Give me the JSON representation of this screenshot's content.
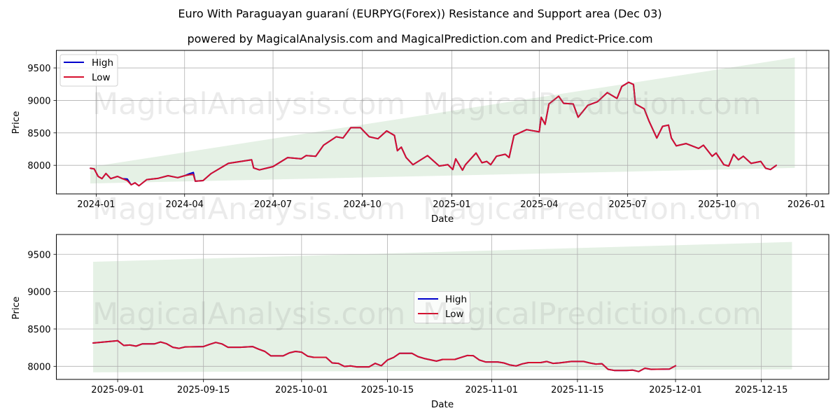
{
  "title": "Euro With Paraguayan guaraní (EURPYG(Forex)) Resistance and Support area (Dec 03)",
  "subtitle": "powered by MagicalAnalysis.com and MagicalPrediction.com and Predict-Price.com",
  "watermarks": [
    "MagicalAnalysis.com",
    "MagicalPrediction.com"
  ],
  "colors": {
    "high": "#0000cc",
    "low": "#d6102e",
    "band": "#e5f1e5",
    "grid": "#b0b0b0"
  },
  "chart_data": [
    {
      "type": "line",
      "title": "",
      "xlabel": "Date",
      "ylabel": "Price",
      "xlim": [
        "2023-11-21",
        "2026-01-24"
      ],
      "ylim": [
        7560,
        9770
      ],
      "grid": true,
      "legend_position": "upper left",
      "xticks": [
        "2024-01",
        "2024-04",
        "2024-07",
        "2024-10",
        "2025-01",
        "2025-04",
        "2025-07",
        "2025-10",
        "2026-01"
      ],
      "yticks": [
        8000,
        8500,
        9000,
        9500
      ],
      "band": {
        "x": [
          "2023-12-26",
          "2025-12-20"
        ],
        "upper": [
          7975,
          9660
        ],
        "lower": [
          7720,
          7960
        ]
      },
      "x": [
        "2023-12-26",
        "2023-12-30",
        "2024-01-03",
        "2024-01-07",
        "2024-01-11",
        "2024-01-16",
        "2024-01-23",
        "2024-01-28",
        "2024-02-02",
        "2024-02-06",
        "2024-02-10",
        "2024-02-14",
        "2024-02-22",
        "2024-03-05",
        "2024-03-15",
        "2024-03-25",
        "2024-04-01",
        "2024-04-06",
        "2024-04-10",
        "2024-04-12",
        "2024-04-20",
        "2024-04-28",
        "2024-05-16",
        "2024-06-09",
        "2024-06-11",
        "2024-06-17",
        "2024-07-01",
        "2024-07-16",
        "2024-07-30",
        "2024-08-04",
        "2024-08-14",
        "2024-08-22",
        "2024-09-04",
        "2024-09-11",
        "2024-09-19",
        "2024-09-29",
        "2024-10-08",
        "2024-10-17",
        "2024-10-26",
        "2024-11-03",
        "2024-11-06",
        "2024-11-10",
        "2024-11-15",
        "2024-11-22",
        "2024-12-07",
        "2024-12-19",
        "2024-12-28",
        "2025-01-02",
        "2025-01-05",
        "2025-01-12",
        "2025-01-15",
        "2025-01-26",
        "2025-02-01",
        "2025-02-06",
        "2025-02-10",
        "2025-02-16",
        "2025-02-25",
        "2025-03-01",
        "2025-03-06",
        "2025-03-19",
        "2025-04-01",
        "2025-04-03",
        "2025-04-07",
        "2025-04-11",
        "2025-04-21",
        "2025-04-26",
        "2025-05-06",
        "2025-05-11",
        "2025-05-21",
        "2025-05-31",
        "2025-06-10",
        "2025-06-20",
        "2025-06-25",
        "2025-07-02",
        "2025-07-07",
        "2025-07-09",
        "2025-07-18",
        "2025-07-23",
        "2025-07-31",
        "2025-08-06",
        "2025-08-12",
        "2025-08-15",
        "2025-08-20",
        "2025-08-30",
        "2025-09-12",
        "2025-09-17",
        "2025-09-26",
        "2025-09-30",
        "2025-10-08",
        "2025-10-13",
        "2025-10-18",
        "2025-10-23",
        "2025-10-28",
        "2025-11-05",
        "2025-11-15",
        "2025-11-20",
        "2025-11-25",
        "2025-12-01"
      ],
      "series": [
        {
          "name": "High",
          "color": "#0000cc",
          "values": [
            7955,
            7945,
            7830,
            7795,
            7875,
            7795,
            7830,
            7795,
            7790,
            7700,
            7730,
            7685,
            7780,
            7800,
            7840,
            7810,
            7840,
            7870,
            7890,
            7755,
            7765,
            7870,
            8030,
            8085,
            7960,
            7930,
            7980,
            8120,
            8100,
            8150,
            8140,
            8310,
            8440,
            8420,
            8580,
            8580,
            8440,
            8410,
            8530,
            8460,
            8225,
            8280,
            8120,
            8010,
            8150,
            7990,
            8010,
            7935,
            8100,
            7925,
            8010,
            8190,
            8040,
            8060,
            8010,
            8140,
            8170,
            8120,
            8460,
            8550,
            8515,
            8740,
            8630,
            8945,
            9065,
            8955,
            8945,
            8740,
            8925,
            8980,
            9120,
            9030,
            9215,
            9280,
            9245,
            8945,
            8870,
            8680,
            8420,
            8600,
            8620,
            8420,
            8300,
            8335,
            8260,
            8310,
            8140,
            8190,
            8010,
            7990,
            8170,
            8085,
            8140,
            8030,
            8060,
            7955,
            7935,
            8000
          ]
        },
        {
          "name": "Low",
          "color": "#d6102e",
          "values": [
            7955,
            7945,
            7830,
            7795,
            7875,
            7795,
            7830,
            7795,
            7765,
            7700,
            7730,
            7685,
            7780,
            7800,
            7840,
            7810,
            7840,
            7855,
            7860,
            7755,
            7765,
            7870,
            8030,
            8085,
            7960,
            7930,
            7980,
            8120,
            8100,
            8150,
            8140,
            8310,
            8440,
            8420,
            8580,
            8580,
            8440,
            8410,
            8530,
            8460,
            8225,
            8280,
            8120,
            8010,
            8150,
            7990,
            8010,
            7935,
            8100,
            7925,
            8010,
            8190,
            8040,
            8060,
            8010,
            8140,
            8170,
            8120,
            8460,
            8550,
            8515,
            8740,
            8630,
            8945,
            9065,
            8955,
            8945,
            8740,
            8925,
            8980,
            9120,
            9030,
            9215,
            9280,
            9245,
            8945,
            8870,
            8680,
            8420,
            8600,
            8620,
            8420,
            8300,
            8335,
            8260,
            8310,
            8140,
            8190,
            8010,
            7990,
            8170,
            8085,
            8140,
            8030,
            8060,
            7955,
            7935,
            8000
          ]
        }
      ]
    },
    {
      "type": "line",
      "title": "",
      "xlabel": "Date",
      "ylabel": "Price",
      "xlim": [
        "2025-08-22",
        "2025-12-26"
      ],
      "ylim": [
        7825,
        9765
      ],
      "grid": true,
      "legend_position": "center",
      "xticks": [
        "2025-09-01",
        "2025-09-15",
        "2025-10-01",
        "2025-10-15",
        "2025-11-01",
        "2025-11-15",
        "2025-12-01",
        "2025-12-15"
      ],
      "yticks": [
        8000,
        8500,
        9000,
        9500
      ],
      "band": {
        "x": [
          "2025-08-28",
          "2025-12-20"
        ],
        "upper": [
          9400,
          9665
        ],
        "lower": [
          7920,
          7960
        ]
      },
      "x": [
        "2025-08-28",
        "2025-09-01",
        "2025-09-02",
        "2025-09-03",
        "2025-09-04",
        "2025-09-05",
        "2025-09-07",
        "2025-09-08",
        "2025-09-09",
        "2025-09-10",
        "2025-09-11",
        "2025-09-12",
        "2025-09-15",
        "2025-09-16",
        "2025-09-17",
        "2025-09-18",
        "2025-09-19",
        "2025-09-21",
        "2025-09-23",
        "2025-09-24",
        "2025-09-25",
        "2025-09-26",
        "2025-09-28",
        "2025-09-29",
        "2025-09-30",
        "2025-10-01",
        "2025-10-02",
        "2025-10-03",
        "2025-10-05",
        "2025-10-06",
        "2025-10-07",
        "2025-10-08",
        "2025-10-09",
        "2025-10-10",
        "2025-10-12",
        "2025-10-13",
        "2025-10-14",
        "2025-10-15",
        "2025-10-16",
        "2025-10-17",
        "2025-10-19",
        "2025-10-20",
        "2025-10-21",
        "2025-10-23",
        "2025-10-24",
        "2025-10-26",
        "2025-10-27",
        "2025-10-28",
        "2025-10-29",
        "2025-10-30",
        "2025-10-31",
        "2025-11-02",
        "2025-11-03",
        "2025-11-04",
        "2025-11-05",
        "2025-11-06",
        "2025-11-07",
        "2025-11-09",
        "2025-11-10",
        "2025-11-11",
        "2025-11-12",
        "2025-11-14",
        "2025-11-16",
        "2025-11-17",
        "2025-11-18",
        "2025-11-19",
        "2025-11-20",
        "2025-11-21",
        "2025-11-23",
        "2025-11-24",
        "2025-11-25",
        "2025-11-26",
        "2025-11-27",
        "2025-11-30",
        "2025-12-01"
      ],
      "series": [
        {
          "name": "High",
          "color": "#0000cc",
          "values": [
            8312,
            8343,
            8280,
            8285,
            8270,
            8300,
            8300,
            8325,
            8302,
            8255,
            8240,
            8260,
            8265,
            8295,
            8320,
            8300,
            8255,
            8255,
            8265,
            8230,
            8200,
            8140,
            8140,
            8180,
            8200,
            8190,
            8135,
            8120,
            8120,
            8045,
            8040,
            7998,
            8005,
            7993,
            7993,
            8040,
            8008,
            8085,
            8118,
            8175,
            8175,
            8130,
            8105,
            8070,
            8092,
            8092,
            8118,
            8145,
            8143,
            8085,
            8058,
            8058,
            8045,
            8018,
            8005,
            8033,
            8050,
            8050,
            8065,
            8040,
            8045,
            8065,
            8065,
            8045,
            8030,
            8035,
            7960,
            7945,
            7945,
            7950,
            7930,
            7975,
            7960,
            7963,
            8008
          ]
        },
        {
          "name": "Low",
          "color": "#d6102e",
          "values": [
            8312,
            8343,
            8280,
            8285,
            8270,
            8300,
            8300,
            8325,
            8302,
            8255,
            8240,
            8260,
            8265,
            8295,
            8320,
            8300,
            8255,
            8255,
            8265,
            8230,
            8200,
            8140,
            8140,
            8180,
            8200,
            8190,
            8135,
            8120,
            8120,
            8045,
            8040,
            7998,
            8005,
            7993,
            7993,
            8040,
            8008,
            8085,
            8118,
            8175,
            8175,
            8130,
            8105,
            8070,
            8092,
            8092,
            8118,
            8145,
            8143,
            8085,
            8058,
            8058,
            8045,
            8018,
            8005,
            8033,
            8050,
            8050,
            8065,
            8040,
            8045,
            8065,
            8065,
            8045,
            8030,
            8035,
            7960,
            7945,
            7945,
            7950,
            7930,
            7975,
            7960,
            7963,
            8008
          ]
        }
      ]
    }
  ]
}
